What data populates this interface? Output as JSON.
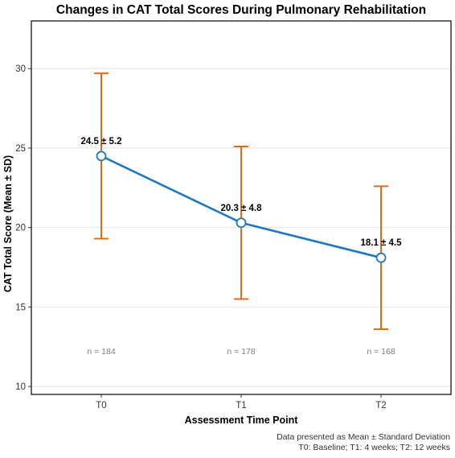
{
  "chart_data": {
    "type": "line",
    "title": "Changes in CAT Total Scores During Pulmonary Rehabilitation",
    "xlabel": "Assessment Time Point",
    "ylabel": "CAT Total Score (Mean ± SD)",
    "categories": [
      "T0",
      "T1",
      "T2"
    ],
    "series": [
      {
        "values": [
          24.5,
          20.3,
          18.1
        ],
        "sd": [
          5.2,
          4.8,
          4.5
        ],
        "error_low": [
          19.3,
          15.5,
          13.6
        ],
        "error_high": [
          29.7,
          25.1,
          22.6
        ],
        "labels": [
          "24.5 ± 5.2",
          "20.3 ± 4.8",
          "18.1 ± 4.5"
        ],
        "color": "#1f78c1",
        "error_color": "#e06c1a"
      }
    ],
    "sample_sizes": [
      "n = 184",
      "n = 178",
      "n = 168"
    ],
    "ylim": [
      9.5,
      33
    ],
    "yticks": [
      10,
      15,
      20,
      25,
      30
    ],
    "grid": true,
    "caption_lines": [
      "Data presented as Mean ± Standard Deviation",
      "T0: Baseline; T1: 4 weeks; T2: 12 weeks"
    ]
  }
}
